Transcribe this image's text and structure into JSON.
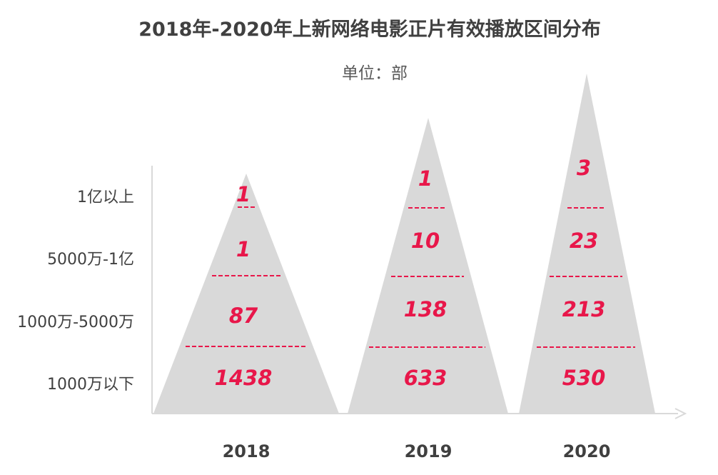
{
  "chart_data": {
    "type": "pyramid",
    "title": "2018年-2020年上新网络电影正片有效播放区间分布",
    "unit_label": "单位：部",
    "categories": [
      "1亿以上",
      "5000万-1亿",
      "1000万-5000万",
      "1000万以下"
    ],
    "series": [
      {
        "name": "2018",
        "values": [
          1,
          1,
          87,
          1438
        ]
      },
      {
        "name": "2019",
        "values": [
          1,
          10,
          138,
          633
        ]
      },
      {
        "name": "2020",
        "values": [
          3,
          23,
          213,
          530
        ]
      }
    ],
    "colors": {
      "triangle": "#d9d9d9",
      "value_text": "#e8174a",
      "axis": "#d9d9d9",
      "label_text": "#404040"
    }
  }
}
